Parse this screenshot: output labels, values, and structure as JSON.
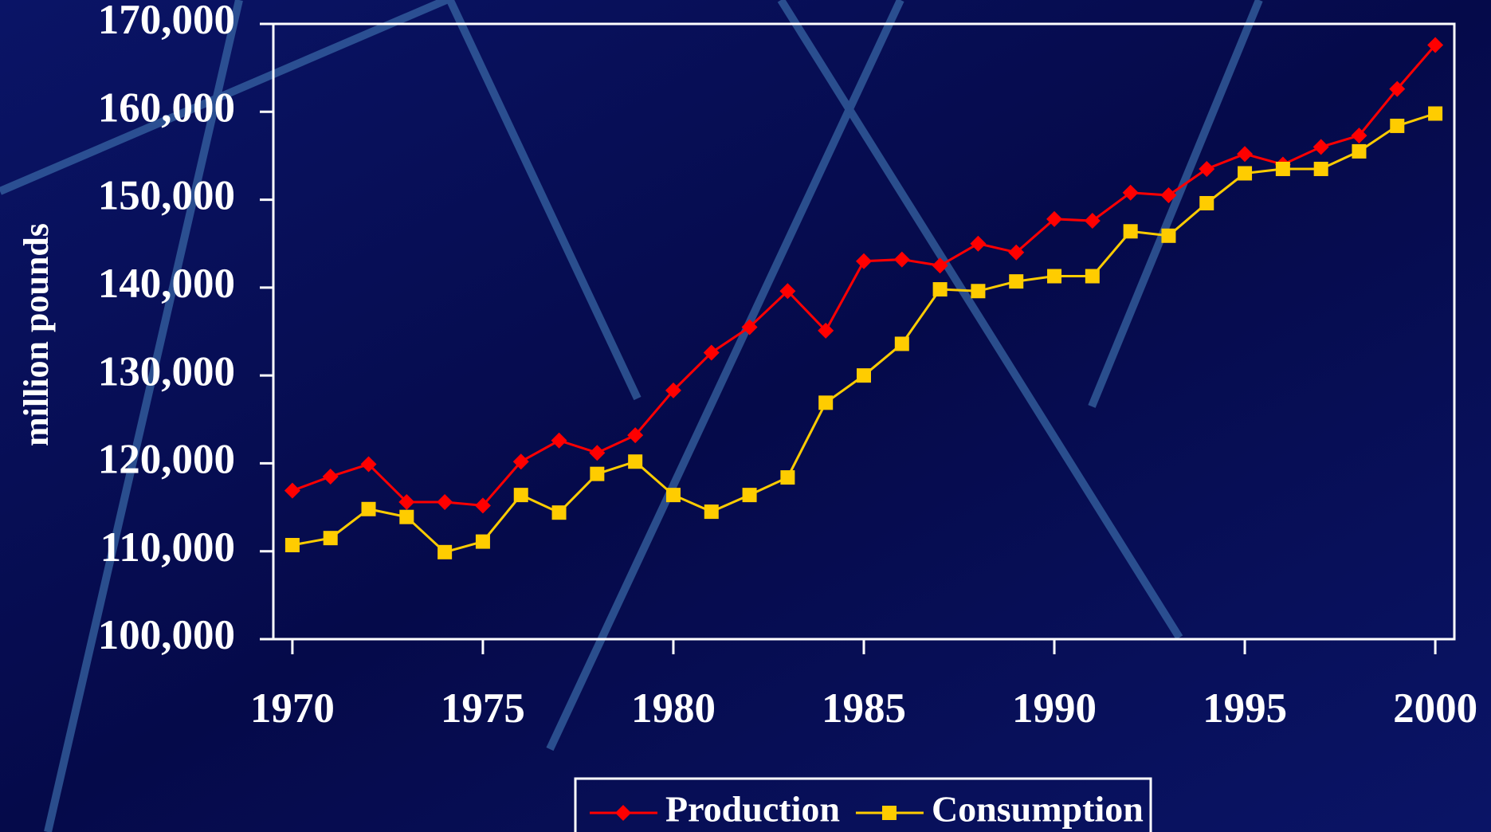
{
  "chart_data": {
    "type": "line",
    "y_label": "million pounds",
    "x": [
      1970,
      1971,
      1972,
      1973,
      1974,
      1975,
      1976,
      1977,
      1978,
      1979,
      1980,
      1981,
      1982,
      1983,
      1984,
      1985,
      1986,
      1987,
      1988,
      1989,
      1990,
      1991,
      1992,
      1993,
      1994,
      1995,
      1996,
      1997,
      1998,
      1999,
      2000
    ],
    "xlim": [
      1969.5,
      2000.5
    ],
    "xticks": [
      1970,
      1975,
      1980,
      1985,
      1990,
      1995,
      2000
    ],
    "ylim": [
      100000,
      170000
    ],
    "yticks": [
      {
        "value": 100000,
        "label": "100,000"
      },
      {
        "value": 110000,
        "label": "110,000"
      },
      {
        "value": 120000,
        "label": "120,000"
      },
      {
        "value": 130000,
        "label": "130,000"
      },
      {
        "value": 140000,
        "label": "140,000"
      },
      {
        "value": 150000,
        "label": "150,000"
      },
      {
        "value": 160000,
        "label": "160,000"
      },
      {
        "value": 170000,
        "label": "170,000"
      }
    ],
    "series": [
      {
        "name": "Production",
        "color": "#ff0000",
        "marker": "diamond",
        "values": [
          116900,
          118500,
          119900,
          115600,
          115600,
          115200,
          120200,
          122600,
          121200,
          123200,
          128300,
          132600,
          135500,
          139600,
          135100,
          143000,
          143200,
          142500,
          145000,
          144000,
          147800,
          147600,
          150800,
          150500,
          153500,
          155200,
          154000,
          156000,
          157300,
          162600,
          167600
        ]
      },
      {
        "name": "Consumption",
        "color": "#ffcc00",
        "marker": "square",
        "values": [
          110700,
          111500,
          114800,
          113900,
          109900,
          111100,
          116400,
          114400,
          118800,
          120200,
          116400,
          114500,
          116400,
          118400,
          126900,
          130000,
          133600,
          139800,
          139600,
          140700,
          141300,
          141300,
          146400,
          145900,
          149600,
          153000,
          153500,
          153500,
          155500,
          158400,
          159800
        ]
      }
    ]
  }
}
